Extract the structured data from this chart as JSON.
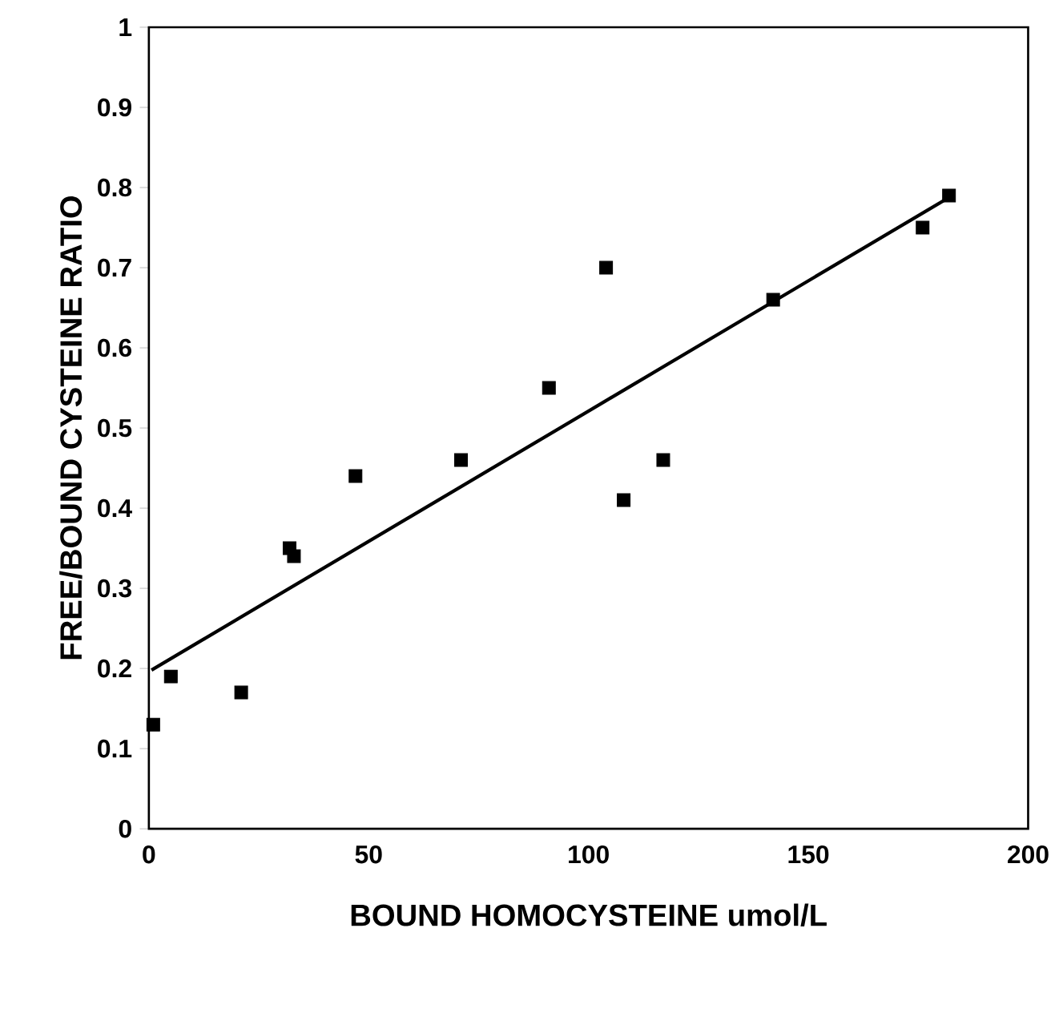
{
  "chart_data": {
    "type": "scatter",
    "xlabel": "BOUND HOMOCYSTEINE umol/L",
    "ylabel": "FREE/BOUND CYSTEINE RATIO",
    "xlim": [
      0,
      200
    ],
    "xticks": [
      0,
      50,
      100,
      150,
      200
    ],
    "ylim": [
      0,
      1
    ],
    "yticks": [
      0,
      0.1,
      0.2,
      0.3,
      0.4,
      0.5,
      0.6,
      0.7,
      0.8,
      0.9,
      1
    ],
    "marker": "square",
    "grid": false,
    "series": [
      {
        "color": "#000000",
        "x": [
          1,
          5,
          21,
          32,
          33,
          47,
          71,
          91,
          104,
          108,
          117,
          142,
          176,
          182
        ],
        "values": [
          0.13,
          0.19,
          0.17,
          0.35,
          0.34,
          0.44,
          0.46,
          0.55,
          0.7,
          0.41,
          0.46,
          0.66,
          0.75,
          0.79
        ]
      },
      {
        "type": "line",
        "color": "#000000",
        "marker": "none",
        "line_style": "solid",
        "x": [
          0.6,
          181.5
        ],
        "values": [
          0.198,
          0.786
        ]
      }
    ]
  }
}
